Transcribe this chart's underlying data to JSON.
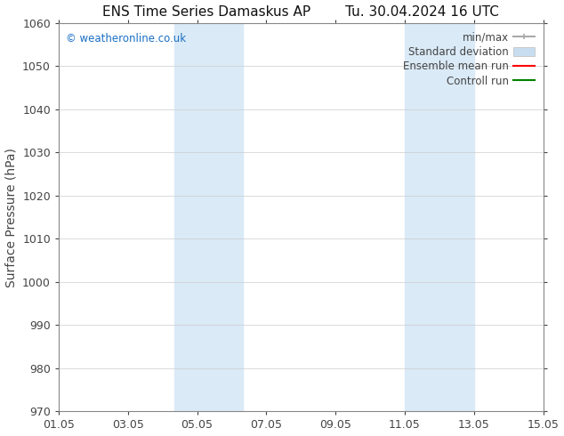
{
  "title_left": "ENS Time Series Damaskus AP",
  "title_right": "Tu. 30.04.2024 16 UTC",
  "ylabel": "Surface Pressure (hPa)",
  "ylim": [
    970,
    1060
  ],
  "yticks": [
    970,
    980,
    990,
    1000,
    1010,
    1020,
    1030,
    1040,
    1050,
    1060
  ],
  "xlim_start": 0,
  "xlim_end": 14,
  "xtick_labels": [
    "01.05",
    "03.05",
    "05.05",
    "07.05",
    "09.05",
    "11.05",
    "13.05",
    "15.05"
  ],
  "xtick_positions": [
    0,
    2,
    4,
    6,
    8,
    10,
    12,
    14
  ],
  "shaded_bands": [
    {
      "x_start": 3.33,
      "x_end": 5.33
    },
    {
      "x_start": 10.0,
      "x_end": 12.0
    }
  ],
  "shaded_color": "#daeaf7",
  "background_color": "#ffffff",
  "watermark": "© weatheronline.co.uk",
  "watermark_color": "#1a6fc4",
  "legend_entries": [
    {
      "label": "min/max",
      "color": "#aaaaaa",
      "lw": 1.5,
      "type": "errbar"
    },
    {
      "label": "Standard deviation",
      "color": "#c8ddf0",
      "lw": 6,
      "type": "patch"
    },
    {
      "label": "Ensemble mean run",
      "color": "#ff0000",
      "lw": 1.5,
      "type": "line"
    },
    {
      "label": "Controll run",
      "color": "#008000",
      "lw": 1.5,
      "type": "line"
    }
  ],
  "tick_color": "#444444",
  "spine_color": "#888888",
  "grid_color": "#cccccc",
  "title_fontsize": 11,
  "axis_label_fontsize": 10,
  "tick_fontsize": 9,
  "legend_fontsize": 8.5
}
